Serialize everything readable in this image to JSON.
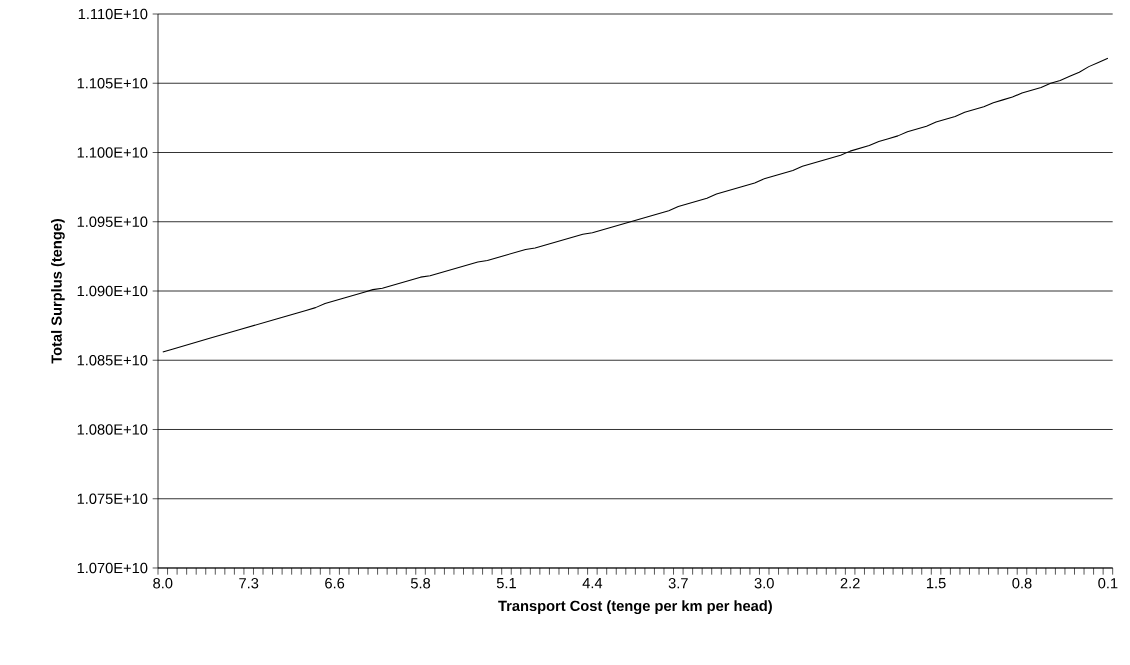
{
  "chart_data": {
    "type": "line",
    "xlabel": "Transport Cost (tenge per km per head)",
    "ylabel": "Total Surplus (tenge)",
    "categories": [
      "8.0",
      null,
      null,
      null,
      null,
      null,
      null,
      null,
      null,
      "7.3",
      null,
      null,
      null,
      null,
      null,
      null,
      null,
      null,
      "6.6",
      null,
      null,
      null,
      null,
      null,
      null,
      null,
      null,
      "5.8",
      null,
      null,
      null,
      null,
      null,
      null,
      null,
      null,
      "5.1",
      null,
      null,
      null,
      null,
      null,
      null,
      null,
      null,
      "4.4",
      null,
      null,
      null,
      null,
      null,
      null,
      null,
      null,
      "3.7",
      null,
      null,
      null,
      null,
      null,
      null,
      null,
      null,
      "3.0",
      null,
      null,
      null,
      null,
      null,
      null,
      null,
      null,
      "2.2",
      null,
      null,
      null,
      null,
      null,
      null,
      null,
      null,
      "1.5",
      null,
      null,
      null,
      null,
      null,
      null,
      null,
      null,
      "0.8",
      null,
      null,
      null,
      null,
      null,
      null,
      null,
      null,
      "0.1"
    ],
    "series": [
      {
        "color": "#000000",
        "values": [
          10856000000.0,
          10858000000.0,
          10860000000.0,
          10862000000.0,
          10864000000.0,
          10866000000.0,
          10868000000.0,
          10870000000.0,
          10872000000.0,
          10874000000.0,
          10876000000.0,
          10878000000.0,
          10880000000.0,
          10882000000.0,
          10884000000.0,
          10886000000.0,
          10888000000.0,
          10891000000.0,
          10893000000.0,
          10895000000.0,
          10897000000.0,
          10899000000.0,
          10901000000.0,
          10902000000.0,
          10904000000.0,
          10906000000.0,
          10908000000.0,
          10910000000.0,
          10911000000.0,
          10913000000.0,
          10915000000.0,
          10917000000.0,
          10919000000.0,
          10921000000.0,
          10922000000.0,
          10924000000.0,
          10926000000.0,
          10928000000.0,
          10930000000.0,
          10931000000.0,
          10933000000.0,
          10935000000.0,
          10937000000.0,
          10939000000.0,
          10941000000.0,
          10942000000.0,
          10944000000.0,
          10946000000.0,
          10948000000.0,
          10950000000.0,
          10952000000.0,
          10954000000.0,
          10956000000.0,
          10958000000.0,
          10961000000.0,
          10963000000.0,
          10965000000.0,
          10967000000.0,
          10970000000.0,
          10972000000.0,
          10974000000.0,
          10976000000.0,
          10978000000.0,
          10981000000.0,
          10983000000.0,
          10985000000.0,
          10987000000.0,
          10990000000.0,
          10992000000.0,
          10994000000.0,
          10996000000.0,
          10998000000.0,
          11001000000.0,
          11003000000.0,
          11005000000.0,
          11008000000.0,
          11010000000.0,
          11012000000.0,
          11015000000.0,
          11017000000.0,
          11019000000.0,
          11022000000.0,
          11024000000.0,
          11026000000.0,
          11029000000.0,
          11031000000.0,
          11033000000.0,
          11036000000.0,
          11038000000.0,
          11040000000.0,
          11043000000.0,
          11045000000.0,
          11047000000.0,
          11050000000.0,
          11052000000.0,
          11055000000.0,
          11058000000.0,
          11062000000.0,
          11065000000.0,
          11068000000.0
        ]
      }
    ],
    "ylim": [
      10700000000.0,
      11100000000.0
    ],
    "yticks": [
      {
        "value": 10700000000.0,
        "label": "1.070E+10"
      },
      {
        "value": 10750000000.0,
        "label": "1.075E+10"
      },
      {
        "value": 10800000000.0,
        "label": "1.080E+10"
      },
      {
        "value": 10850000000.0,
        "label": "1.085E+10"
      },
      {
        "value": 10900000000.0,
        "label": "1.090E+10"
      },
      {
        "value": 10950000000.0,
        "label": "1.095E+10"
      },
      {
        "value": 11000000000.0,
        "label": "1.100E+10"
      },
      {
        "value": 11050000000.0,
        "label": "1.105E+10"
      },
      {
        "value": 11100000000.0,
        "label": "1.110E+10"
      }
    ],
    "grid": "y",
    "marker": "none",
    "line_style": "solid"
  }
}
